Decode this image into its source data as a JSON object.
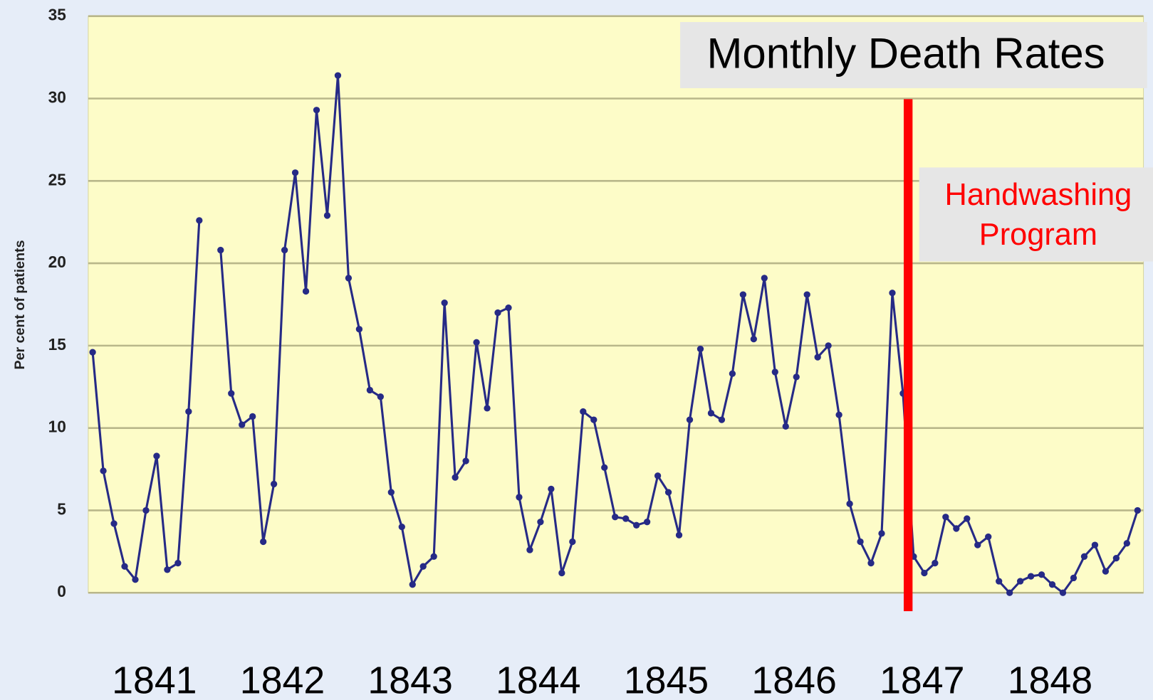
{
  "chart_data": {
    "type": "line",
    "title": "Monthly Death Rates",
    "annotation": [
      "Handwashing",
      "Program"
    ],
    "ylabel": "Per cent of patients",
    "categories": [
      null,
      null,
      null,
      null,
      null,
      null,
      "1841",
      null,
      null,
      null,
      null,
      null,
      null,
      null,
      null,
      null,
      null,
      null,
      "1842",
      null,
      null,
      null,
      null,
      null,
      null,
      null,
      null,
      null,
      null,
      null,
      "1843",
      null,
      null,
      null,
      null,
      null,
      null,
      null,
      null,
      null,
      null,
      null,
      "1844",
      null,
      null,
      null,
      null,
      null,
      null,
      null,
      null,
      null,
      null,
      null,
      "1845",
      null,
      null,
      null,
      null,
      null,
      null,
      null,
      null,
      null,
      null,
      null,
      "1846",
      null,
      null,
      null,
      null,
      null,
      null,
      null,
      null,
      null,
      null,
      null,
      "1847",
      null,
      null,
      null,
      null,
      null,
      null,
      null,
      null,
      null,
      null,
      null,
      "1848",
      null,
      null,
      null,
      null,
      null,
      null,
      null,
      null
    ],
    "values": [
      14.6,
      7.4,
      4.2,
      1.6,
      0.8,
      5.0,
      8.3,
      1.4,
      1.8,
      11.0,
      22.6,
      null,
      20.8,
      12.1,
      10.2,
      10.7,
      3.1,
      6.6,
      20.8,
      25.5,
      18.3,
      29.3,
      22.9,
      31.4,
      19.1,
      16.0,
      12.3,
      11.9,
      6.1,
      4.0,
      0.5,
      1.6,
      2.2,
      17.6,
      7.0,
      8.0,
      15.2,
      11.2,
      17.0,
      17.3,
      5.8,
      2.6,
      4.3,
      6.3,
      1.2,
      3.1,
      11.0,
      10.5,
      7.6,
      4.6,
      4.5,
      4.1,
      4.3,
      7.1,
      6.1,
      3.5,
      10.5,
      14.8,
      10.9,
      10.5,
      13.3,
      18.1,
      15.4,
      19.1,
      13.4,
      10.1,
      13.1,
      18.1,
      14.3,
      15.0,
      10.8,
      5.4,
      3.1,
      1.8,
      3.6,
      18.2,
      12.1,
      2.2,
      1.2,
      1.8,
      4.6,
      3.9,
      4.5,
      2.9,
      3.4,
      0.7,
      0.0,
      0.7,
      1.0,
      1.1,
      0.5,
      0.0,
      0.9,
      2.2,
      2.9,
      1.3,
      2.1,
      3.0,
      5.0
    ],
    "color": "#262a86",
    "ylim": [
      0,
      35
    ],
    "yticks": [
      0,
      5,
      10,
      15,
      20,
      25,
      30,
      35
    ],
    "grid": true
  }
}
